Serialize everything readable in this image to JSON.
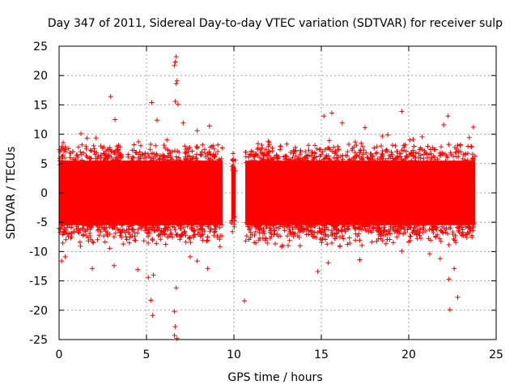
{
  "chart_data": {
    "type": "scatter",
    "title": "Day 347 of 2011, Sidereal Day-to-day VTEC variation (SDTVAR) for receiver sulp",
    "xlabel": "GPS time / hours",
    "ylabel": "SDTVAR / TECUs",
    "xlim": [
      0,
      25
    ],
    "ylim": [
      -25,
      25
    ],
    "x_ticks": [
      0,
      5,
      10,
      15,
      20,
      25
    ],
    "y_ticks": [
      -25,
      -20,
      -15,
      -10,
      -5,
      0,
      5,
      10,
      15,
      20,
      25
    ],
    "x_tick_labels": [
      "0",
      "5",
      "10",
      "15",
      "20",
      "25"
    ],
    "y_tick_labels": [
      "-25",
      "-20",
      "-15",
      "-10",
      "-5",
      "0",
      "5",
      "10",
      "15",
      "20",
      "25"
    ],
    "grid": true,
    "marker": "+",
    "color": "#ff0000",
    "bands": [
      {
        "x_start": 0.0,
        "x_end": 9.35,
        "y_core_low": -5.5,
        "y_core_high": 5.5
      },
      {
        "x_start": 9.85,
        "x_end": 10.1,
        "y_core_low": -4.5,
        "y_core_high": 4.5
      },
      {
        "x_start": 10.65,
        "x_end": 23.8,
        "y_core_low": -5.5,
        "y_core_high": 5.5
      }
    ],
    "outlier_points": [
      {
        "x": 6.7,
        "y": 23.2
      },
      {
        "x": 6.65,
        "y": 22.3
      },
      {
        "x": 6.6,
        "y": 21.7
      },
      {
        "x": 6.75,
        "y": 19.1
      },
      {
        "x": 6.7,
        "y": 18.6
      },
      {
        "x": 6.65,
        "y": 15.6
      },
      {
        "x": 6.8,
        "y": 15.1
      },
      {
        "x": 5.3,
        "y": 15.4
      },
      {
        "x": 2.95,
        "y": 16.4
      },
      {
        "x": 3.2,
        "y": 12.5
      },
      {
        "x": 1.25,
        "y": 10.1
      },
      {
        "x": 5.6,
        "y": 12.4
      },
      {
        "x": 7.1,
        "y": 11.9
      },
      {
        "x": 8.6,
        "y": 11.4
      },
      {
        "x": 7.9,
        "y": 10.6
      },
      {
        "x": 15.6,
        "y": 13.6
      },
      {
        "x": 15.15,
        "y": 13.1
      },
      {
        "x": 16.2,
        "y": 11.9
      },
      {
        "x": 17.5,
        "y": 11.1
      },
      {
        "x": 19.6,
        "y": 13.9
      },
      {
        "x": 22.25,
        "y": 13.1
      },
      {
        "x": 23.7,
        "y": 11.2
      },
      {
        "x": 22.0,
        "y": 11.6
      },
      {
        "x": 18.8,
        "y": 9.9
      },
      {
        "x": 0.15,
        "y": -11.6
      },
      {
        "x": 0.35,
        "y": -10.9
      },
      {
        "x": 1.9,
        "y": -12.9
      },
      {
        "x": 3.15,
        "y": -12.4
      },
      {
        "x": 4.5,
        "y": -13.1
      },
      {
        "x": 5.1,
        "y": -14.4
      },
      {
        "x": 5.4,
        "y": -14.0
      },
      {
        "x": 5.25,
        "y": -18.3
      },
      {
        "x": 5.35,
        "y": -20.9
      },
      {
        "x": 6.6,
        "y": -20.2
      },
      {
        "x": 6.65,
        "y": -22.8
      },
      {
        "x": 6.6,
        "y": -24.3
      },
      {
        "x": 6.75,
        "y": -24.8
      },
      {
        "x": 6.7,
        "y": -16.2
      },
      {
        "x": 7.5,
        "y": -10.9
      },
      {
        "x": 8.5,
        "y": -12.9
      },
      {
        "x": 7.9,
        "y": -11.6
      },
      {
        "x": 10.6,
        "y": -18.4
      },
      {
        "x": 14.8,
        "y": -13.4
      },
      {
        "x": 15.4,
        "y": -11.9
      },
      {
        "x": 17.2,
        "y": -11.4
      },
      {
        "x": 19.6,
        "y": -9.9
      },
      {
        "x": 21.2,
        "y": -10.4
      },
      {
        "x": 22.3,
        "y": -14.7
      },
      {
        "x": 22.35,
        "y": -19.9
      },
      {
        "x": 22.8,
        "y": -17.8
      },
      {
        "x": 22.6,
        "y": -12.9
      },
      {
        "x": 21.8,
        "y": -11.2
      }
    ]
  }
}
